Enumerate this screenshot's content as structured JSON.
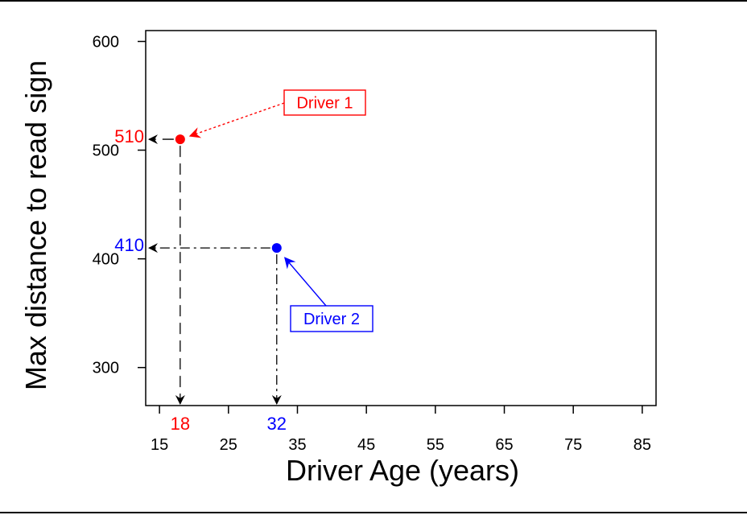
{
  "chart_data": {
    "type": "scatter",
    "xlabel": "Driver Age (years)",
    "ylabel": "Max distance to read sign",
    "xlim": [
      13,
      87
    ],
    "ylim": [
      265,
      610
    ],
    "x_ticks": [
      15,
      25,
      35,
      45,
      55,
      65,
      75,
      85
    ],
    "x_tick_labels": [
      "15",
      "25",
      "35",
      "45",
      "55",
      "65",
      "75",
      "85"
    ],
    "y_ticks": [
      300,
      400,
      500,
      600
    ],
    "y_tick_labels": [
      "300",
      "400",
      "500",
      "600"
    ],
    "grid": false,
    "series": [
      {
        "name": "Driver 1",
        "color": "#ff0000",
        "points": [
          {
            "x": 18,
            "y": 510
          }
        ],
        "x_label": "18",
        "y_label": "510",
        "line_style": "dashed"
      },
      {
        "name": "Driver 2",
        "color": "#0000ff",
        "points": [
          {
            "x": 32,
            "y": 410
          }
        ],
        "x_label": "32",
        "y_label": "410",
        "line_style": "dashdot"
      }
    ],
    "annotations": [
      {
        "text": "Driver 1",
        "points_to_series": 0,
        "color": "#ff0000"
      },
      {
        "text": "Driver 2",
        "points_to_series": 1,
        "color": "#0000ff"
      }
    ]
  }
}
